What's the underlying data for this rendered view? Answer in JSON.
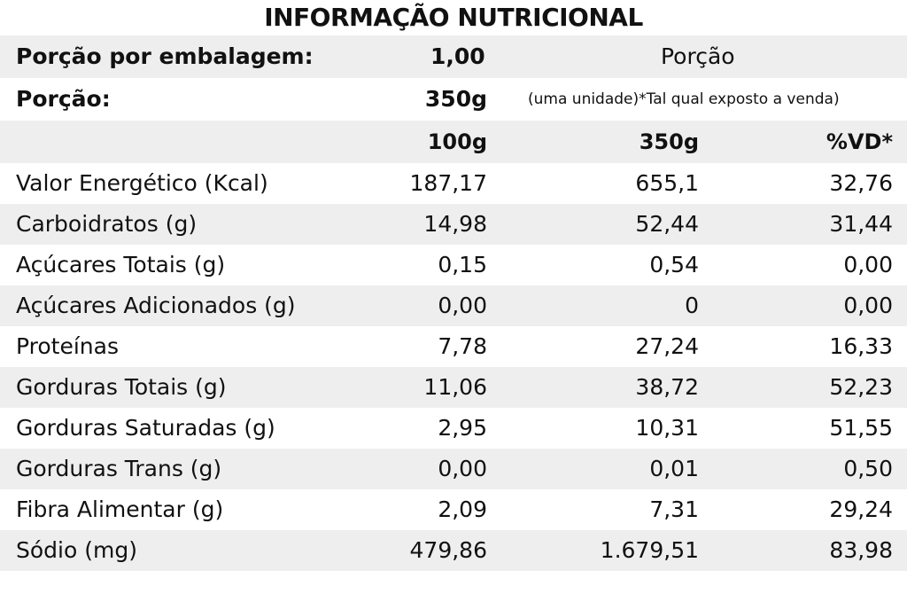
{
  "title": "INFORMAÇÃO NUTRICIONAL",
  "header": {
    "servings_label": "Porção por embalagem:",
    "servings_value": "1,00",
    "serving_label": "Porção:",
    "serving_value": "350g",
    "serving_column_title": "Porção",
    "serving_note": "(uma unidade)*Tal qual exposto a venda)"
  },
  "columns": {
    "per_100": "100g",
    "per_serving": "350g",
    "daily_value": "%VD*"
  },
  "rows": [
    {
      "label": "Valor Energético (Kcal)",
      "per_100": "187,17",
      "per_serving": "655,1",
      "dv": "32,76"
    },
    {
      "label": "Carboidratos (g)",
      "per_100": "14,98",
      "per_serving": "52,44",
      "dv": "31,44"
    },
    {
      "label": "Açúcares Totais (g)",
      "per_100": "0,15",
      "per_serving": "0,54",
      "dv": "0,00"
    },
    {
      "label": "Açúcares Adicionados (g)",
      "per_100": "0,00",
      "per_serving": "0",
      "dv": "0,00"
    },
    {
      "label": "Proteínas",
      "per_100": "7,78",
      "per_serving": "27,24",
      "dv": "16,33"
    },
    {
      "label": "Gorduras Totais (g)",
      "per_100": "11,06",
      "per_serving": "38,72",
      "dv": "52,23"
    },
    {
      "label": "Gorduras Saturadas (g)",
      "per_100": "2,95",
      "per_serving": "10,31",
      "dv": "51,55"
    },
    {
      "label": "Gorduras Trans (g)",
      "per_100": "0,00",
      "per_serving": "0,01",
      "dv": "0,50"
    },
    {
      "label": "Fibra Alimentar (g)",
      "per_100": "2,09",
      "per_serving": "7,31",
      "dv": "29,24"
    },
    {
      "label": "Sódio (mg)",
      "per_100": "479,86",
      "per_serving": "1.679,51",
      "dv": "83,98"
    }
  ]
}
